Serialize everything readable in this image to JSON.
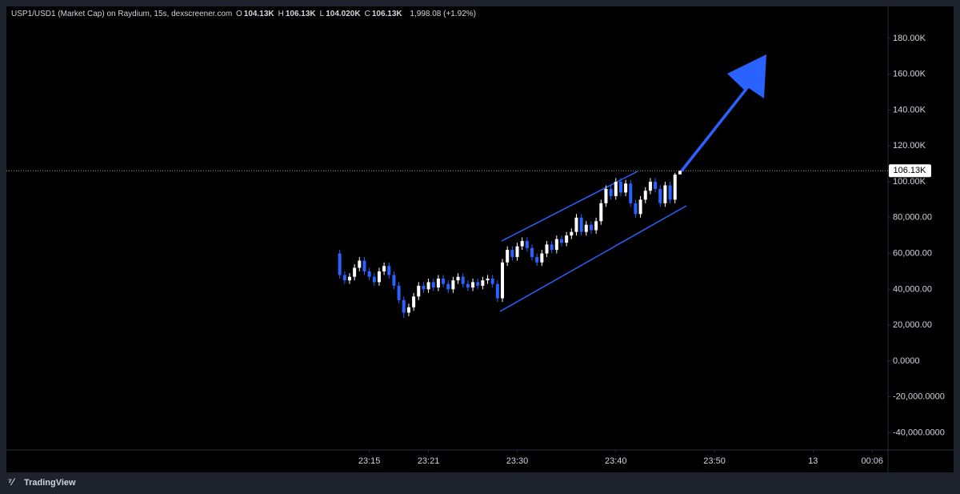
{
  "chart_data": {
    "type": "candlestick",
    "title": "USP1/USD1 (Market Cap) on Raydium, 15s, dexscreener.com",
    "ohlc_readout": [
      {
        "key": "O",
        "text": "104.13K"
      },
      {
        "key": "H",
        "text": "106.13K"
      },
      {
        "key": "L",
        "text": "104.020K"
      },
      {
        "key": "C",
        "text": "106.13K"
      }
    ],
    "change": "1,998.08 (+1.92%)",
    "up_color": "#ffffff",
    "down_color": "#2962ff",
    "x": [
      12,
      12.5,
      13,
      13.5,
      14,
      14.5,
      15,
      15.5,
      16,
      16.5,
      17,
      17.5,
      18,
      18.5,
      19,
      19.5,
      20,
      20.5,
      21,
      21.5,
      22,
      22.5,
      23,
      23.5,
      24,
      24.5,
      25,
      25.5,
      26,
      26.5,
      27,
      27.5,
      28,
      28.5,
      29,
      29.5,
      30,
      30.5,
      31,
      31.5,
      32,
      32.5,
      33,
      33.5,
      34,
      34.5,
      35,
      35.5,
      36,
      36.5,
      37,
      37.5,
      38,
      38.5,
      39,
      39.5,
      40,
      40.5,
      41,
      41.5,
      42,
      42.5,
      43,
      43.5,
      44,
      44.5,
      45,
      45.5,
      46,
      46.5
    ],
    "open": [
      60000,
      48000,
      45000,
      47000,
      52000,
      56000,
      50000,
      47000,
      44000,
      50000,
      53000,
      48000,
      42000,
      34000,
      27000,
      30000,
      36000,
      42000,
      40000,
      44000,
      41000,
      46000,
      43000,
      40000,
      45000,
      47000,
      43000,
      41000,
      44000,
      42000,
      45000,
      46000,
      43000,
      35000,
      55000,
      62000,
      58000,
      64000,
      67000,
      63000,
      58000,
      55000,
      60000,
      65000,
      62000,
      68000,
      66000,
      70000,
      72000,
      80000,
      72000,
      76000,
      73000,
      78000,
      88000,
      96000,
      92000,
      100000,
      94000,
      99000,
      88000,
      82000,
      90000,
      95000,
      100000,
      96000,
      88000,
      98000,
      90000,
      104130
    ],
    "high": [
      62000,
      50000,
      49000,
      54000,
      58000,
      58000,
      52000,
      49000,
      52000,
      55000,
      55000,
      50000,
      44000,
      36000,
      32000,
      38000,
      44000,
      44000,
      46000,
      46000,
      48000,
      48000,
      45000,
      47000,
      49000,
      49000,
      45000,
      46000,
      46000,
      47000,
      48000,
      48000,
      45000,
      57000,
      64000,
      64000,
      66000,
      69000,
      69000,
      65000,
      60000,
      62000,
      67000,
      67000,
      70000,
      70000,
      72000,
      74000,
      82000,
      82000,
      78000,
      78000,
      80000,
      90000,
      98000,
      98000,
      102000,
      102000,
      101000,
      101000,
      90000,
      92000,
      97000,
      102000,
      102000,
      98000,
      100000,
      100000,
      105000,
      106130
    ],
    "low": [
      46000,
      43000,
      43000,
      45000,
      50000,
      48000,
      45000,
      42000,
      42000,
      48000,
      46000,
      40000,
      32000,
      24000,
      25000,
      28000,
      34000,
      38000,
      38000,
      39000,
      39000,
      41000,
      38000,
      38000,
      43000,
      41000,
      39000,
      39000,
      40000,
      40000,
      43000,
      41000,
      33000,
      33000,
      53000,
      56000,
      56000,
      62000,
      61000,
      56000,
      53000,
      53000,
      58000,
      60000,
      60000,
      64000,
      64000,
      68000,
      70000,
      70000,
      70000,
      71000,
      71000,
      76000,
      86000,
      90000,
      90000,
      92000,
      92000,
      86000,
      80000,
      80000,
      88000,
      93000,
      94000,
      86000,
      86000,
      88000,
      88000,
      104020
    ],
    "close": [
      48000,
      45000,
      47000,
      52000,
      56000,
      50000,
      47000,
      44000,
      50000,
      53000,
      48000,
      42000,
      34000,
      27000,
      30000,
      36000,
      42000,
      40000,
      44000,
      41000,
      46000,
      43000,
      40000,
      45000,
      47000,
      43000,
      41000,
      44000,
      42000,
      45000,
      46000,
      43000,
      35000,
      55000,
      62000,
      58000,
      64000,
      67000,
      63000,
      58000,
      55000,
      60000,
      65000,
      62000,
      68000,
      66000,
      70000,
      72000,
      80000,
      72000,
      76000,
      73000,
      78000,
      88000,
      96000,
      92000,
      100000,
      94000,
      99000,
      88000,
      82000,
      90000,
      95000,
      100000,
      96000,
      88000,
      98000,
      90000,
      104000,
      106130
    ],
    "xlim": [
      -21.8,
      67.6
    ],
    "xticks": [
      {
        "value": 15,
        "label": "23:15"
      },
      {
        "value": 21,
        "label": "23:21"
      },
      {
        "value": 30,
        "label": "23:30"
      },
      {
        "value": 40,
        "label": "23:40"
      },
      {
        "value": 50,
        "label": "23:50"
      },
      {
        "value": 60,
        "label": "13"
      },
      {
        "value": 66,
        "label": "00:06"
      }
    ],
    "ylim": [
      -49600,
      197800
    ],
    "yticks": [
      {
        "value": 180000,
        "label": "180.00K"
      },
      {
        "value": 160000,
        "label": "160.00K"
      },
      {
        "value": 140000,
        "label": "140.00K"
      },
      {
        "value": 120000,
        "label": "120.00K"
      },
      {
        "value": 100000,
        "label": "100.00K"
      },
      {
        "value": 80000,
        "label": "80,000.00"
      },
      {
        "value": 60000,
        "label": "60,000.00"
      },
      {
        "value": 40000,
        "label": "40,000.00"
      },
      {
        "value": 20000,
        "label": "20,000.00"
      },
      {
        "value": 0,
        "label": "0.0000"
      },
      {
        "value": -20000,
        "label": "-20,000.0000"
      },
      {
        "value": -40000,
        "label": "-40,000.0000"
      }
    ],
    "last_price": {
      "value": 106130,
      "label": "106.13K"
    },
    "brand": "TradingView"
  }
}
